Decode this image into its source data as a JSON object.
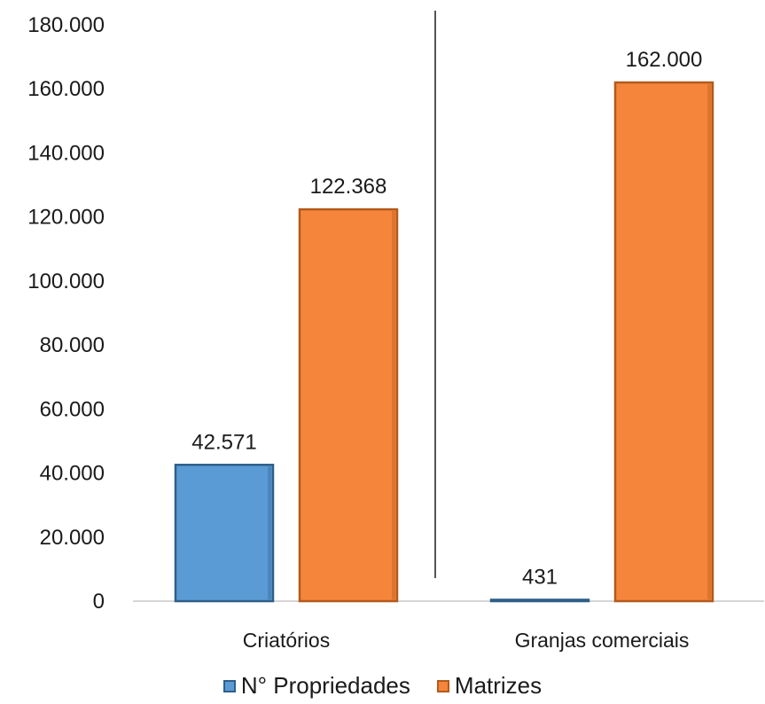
{
  "chart_data": {
    "type": "bar",
    "categories": [
      "Criatórios",
      "Granjas comerciais"
    ],
    "series": [
      {
        "name": "N° Propriedades",
        "values": [
          42571,
          431
        ],
        "labels": [
          "42.571",
          "431"
        ],
        "color": "#5b9bd5",
        "border": "#2e5f8a"
      },
      {
        "name": "Matrizes",
        "values": [
          122368,
          162000
        ],
        "labels": [
          "122.368",
          "162.000"
        ],
        "color": "#f5853a",
        "border": "#b35a1c"
      }
    ],
    "ylim": [
      0,
      180000
    ],
    "yticks": [
      0,
      20000,
      40000,
      60000,
      80000,
      100000,
      120000,
      140000,
      160000,
      180000
    ],
    "ytick_labels": [
      "0",
      "20.000",
      "40.000",
      "60.000",
      "80.000",
      "100.000",
      "120.000",
      "140.000",
      "160.000",
      "180.000"
    ],
    "grid": false,
    "legend_position": "bottom",
    "group_separator": true
  }
}
